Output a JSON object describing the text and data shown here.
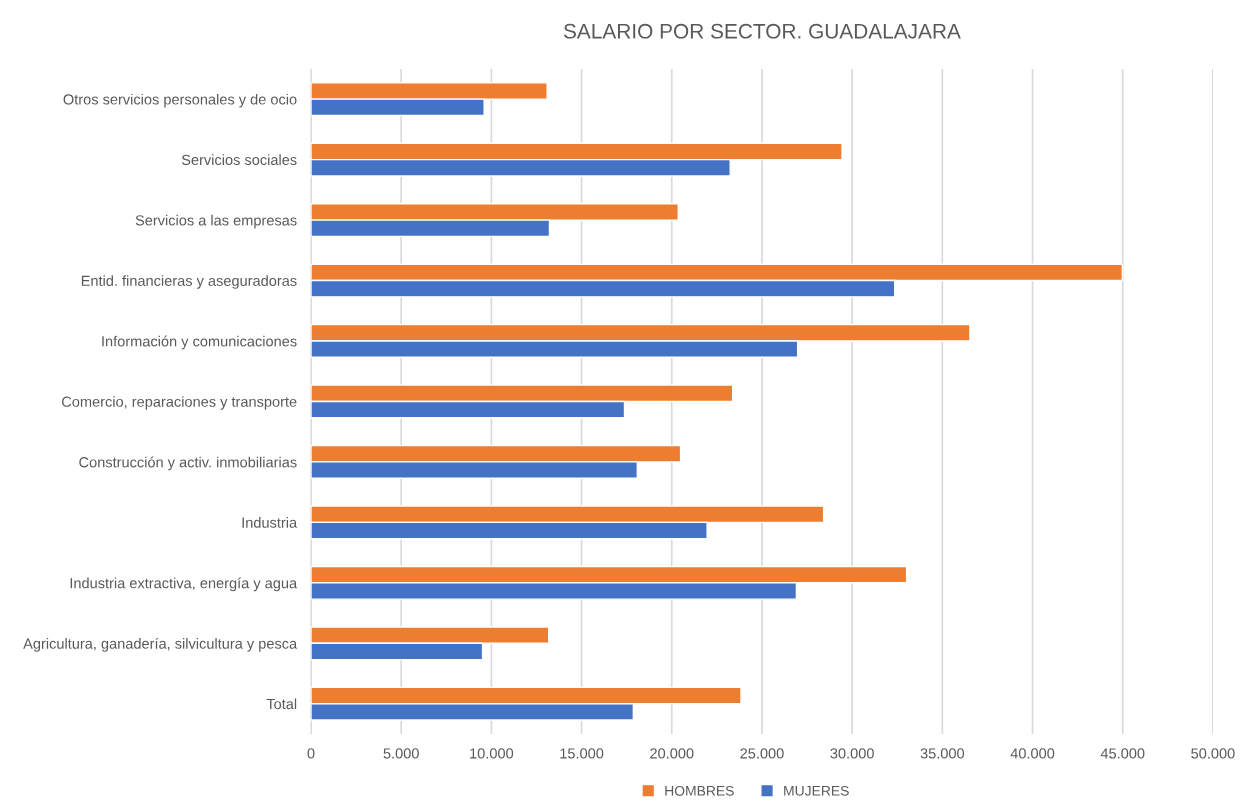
{
  "chart_data": {
    "type": "bar",
    "orientation": "horizontal",
    "title": "SALARIO POR SECTOR. GUADALAJARA",
    "categories": [
      "Otros servicios personales y de ocio",
      "Servicios sociales",
      "Servicios a las empresas",
      "Entid. financieras y aseguradoras",
      "Información y comunicaciones",
      "Comercio, reparaciones y transporte",
      "Construcción y activ. inmobiliarias",
      "Industria",
      "Industria extractiva, energía y agua",
      "Agricultura, ganadería, silvicultura y pesca",
      "Total"
    ],
    "series": [
      {
        "name": "HOMBRES",
        "color": "#ed7d31",
        "values": [
          13090,
          29440,
          20360,
          44980,
          36530,
          23380,
          20490,
          28420,
          33020,
          13180,
          23840
        ]
      },
      {
        "name": "MUJERES",
        "color": "#4472c4",
        "values": [
          9600,
          23240,
          13220,
          32360,
          26980,
          17380,
          18090,
          21960,
          26910,
          9510,
          17870
        ]
      }
    ],
    "xlim": [
      0,
      50000
    ],
    "xticks": [
      0,
      {
        "value": 5000,
        "label": "5.000"
      },
      {
        "value": 10000,
        "label": "10.000"
      },
      {
        "value": 15000,
        "label": "15.000"
      },
      {
        "value": 20000,
        "label": "20.000"
      },
      {
        "value": 25000,
        "label": "25.000"
      },
      {
        "value": 30000,
        "label": "30.000"
      },
      {
        "value": 35000,
        "label": "35.000"
      },
      {
        "value": 40000,
        "label": "40.000"
      },
      {
        "value": 45000,
        "label": "45.000"
      },
      {
        "value": 50000,
        "label": "50.000"
      }
    ],
    "grid": "x",
    "legend": "bottom"
  }
}
